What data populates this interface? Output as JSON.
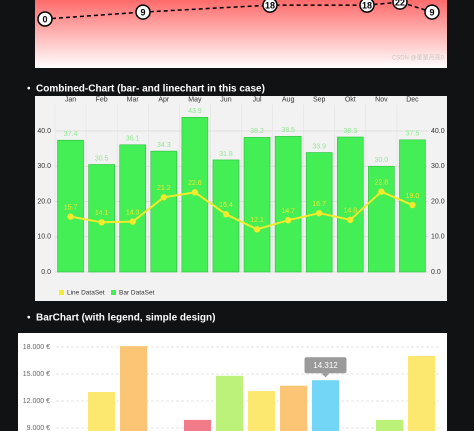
{
  "chart_data": [
    {
      "type": "line",
      "values": [
        0,
        9,
        18,
        18,
        22,
        9
      ],
      "color": "#000000",
      "watermark": "CSDN @星星月亮0"
    },
    {
      "type": "combo",
      "title": "Combined-Chart (bar- and linechart in this case)",
      "categories": [
        "Jan",
        "Feb",
        "Mar",
        "Apr",
        "May",
        "Jun",
        "Jul",
        "Aug",
        "Sep",
        "Okt",
        "Nov",
        "Dec"
      ],
      "series": [
        {
          "name": "Line DataSet",
          "type": "line",
          "color": "#f2ea2c",
          "values": [
            15.7,
            14.1,
            14.3,
            21.2,
            22.6,
            16.4,
            12.1,
            14.7,
            16.7,
            14.8,
            22.8,
            19.0
          ],
          "value_labels": [
            "15.7",
            "14.1",
            "14.3",
            "21.2",
            "22.6",
            "16.4",
            "12.1",
            "14.7",
            "16.7",
            "14.8",
            "22.8",
            "19.0"
          ]
        },
        {
          "name": "Bar DataSet",
          "type": "bar",
          "color": "#44ee55",
          "values": [
            37.4,
            30.5,
            36.1,
            34.3,
            43.9,
            31.8,
            38.2,
            38.5,
            33.9,
            38.3,
            30.0,
            37.5
          ],
          "value_labels": [
            "37.4",
            "30.5",
            "36.1",
            "34.3",
            "43.9",
            "31.8",
            "38.2",
            "38.5",
            "33.9",
            "38.3",
            "30.0",
            "37.5"
          ]
        }
      ],
      "ylim": [
        0,
        47.5
      ],
      "yticks": [
        {
          "value": 0,
          "label": "0.0"
        },
        {
          "value": 10,
          "label": "10.0"
        },
        {
          "value": 20,
          "label": "20.0"
        },
        {
          "value": 30,
          "label": "30.0"
        },
        {
          "value": 40,
          "label": "40.0"
        }
      ],
      "y2lim": [
        0,
        47.5
      ],
      "y2ticks": [
        {
          "value": 0,
          "label": "0.0"
        },
        {
          "value": 10,
          "label": "10.0"
        },
        {
          "value": 20,
          "label": "20.0"
        },
        {
          "value": 30,
          "label": "30.0"
        },
        {
          "value": 40,
          "label": "40.0"
        }
      ],
      "grid": true
    },
    {
      "type": "bar",
      "title": "BarChart (with legend, simple design)",
      "values": [
        null,
        13000,
        18100,
        null,
        9900,
        14800,
        13100,
        13700,
        14312,
        null,
        9900,
        17000
      ],
      "colors": [
        null,
        "#fde86f",
        "#fcc475",
        null,
        "#f27b89",
        "#bdf27a",
        "#fde86f",
        "#fcc475",
        "#73d6f7",
        null,
        "#bdf27a",
        "#fde86f"
      ],
      "value_labels": [
        null,
        null,
        null,
        null,
        null,
        null,
        null,
        null,
        "14.312",
        null,
        null,
        null
      ],
      "ylim": [
        8500,
        19000
      ],
      "yticks": [
        {
          "value": 9000,
          "label": "9.000 €"
        },
        {
          "value": 12000,
          "label": "12.000 €"
        },
        {
          "value": 15000,
          "label": "15.000 €"
        },
        {
          "value": 18000,
          "label": "18.000 €"
        }
      ],
      "grid": true
    }
  ]
}
